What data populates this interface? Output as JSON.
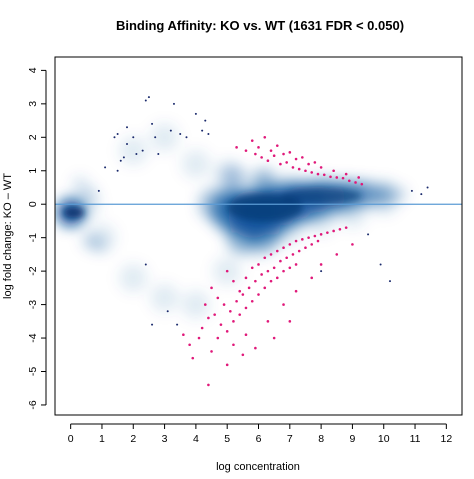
{
  "chart_data": {
    "type": "scatter",
    "title": "Binding Affinity: KO vs. WT (1631 FDR < 0.050)",
    "xlabel": "log concentration",
    "ylabel": "log fold change: KO – WT",
    "xlim": [
      -0.5,
      12.5
    ],
    "ylim": [
      -6.3,
      4.4
    ],
    "x_ticks": [
      "0",
      "1",
      "2",
      "3",
      "4",
      "5",
      "6",
      "7",
      "8",
      "9",
      "10",
      "11",
      "12"
    ],
    "y_ticks": [
      "4",
      "3",
      "2",
      "1",
      "0",
      "-1",
      "-2",
      "-3",
      "-4",
      "-5",
      "-6"
    ],
    "reference_line": {
      "y": 0,
      "color": "#5b9bd5"
    },
    "colors": {
      "density": "#08519c",
      "significant": "#e0197a",
      "outlier": "#1a2a6c"
    },
    "series": [
      {
        "marker": "density-smoothed",
        "color": "#08519c",
        "description_points": [
          [
            0.0,
            -0.2
          ],
          [
            0.5,
            0.0
          ],
          [
            1.0,
            -1.0
          ],
          [
            2.0,
            -2.2
          ],
          [
            3.0,
            -2.8
          ],
          [
            4.0,
            -3.0
          ],
          [
            5.0,
            -2.0
          ],
          [
            6.0,
            -1.2
          ],
          [
            7.0,
            -0.8
          ],
          [
            8.0,
            -0.5
          ],
          [
            9.0,
            -0.3
          ],
          [
            10.0,
            0.1
          ],
          [
            2.0,
            1.6
          ],
          [
            3.0,
            2.0
          ],
          [
            4.0,
            1.2
          ],
          [
            5.0,
            0.9
          ],
          [
            6.0,
            0.6
          ],
          [
            7.0,
            0.5
          ],
          [
            8.0,
            0.4
          ],
          [
            9.0,
            0.3
          ],
          [
            10.0,
            0.3
          ]
        ]
      },
      {
        "marker": "significant",
        "color": "#e0197a",
        "points": [
          [
            5.3,
            1.7
          ],
          [
            5.6,
            1.6
          ],
          [
            5.9,
            1.5
          ],
          [
            6.1,
            1.4
          ],
          [
            6.3,
            1.3
          ],
          [
            6.5,
            1.45
          ],
          [
            6.7,
            1.2
          ],
          [
            6.9,
            1.25
          ],
          [
            7.1,
            1.1
          ],
          [
            7.3,
            1.05
          ],
          [
            7.5,
            1.0
          ],
          [
            7.7,
            0.95
          ],
          [
            7.9,
            0.9
          ],
          [
            8.1,
            0.88
          ],
          [
            8.3,
            0.82
          ],
          [
            8.5,
            0.8
          ],
          [
            8.7,
            0.78
          ],
          [
            8.9,
            0.7
          ],
          [
            9.1,
            0.65
          ],
          [
            9.3,
            0.6
          ],
          [
            6.0,
            1.7
          ],
          [
            6.4,
            1.6
          ],
          [
            6.8,
            1.5
          ],
          [
            7.2,
            1.35
          ],
          [
            7.6,
            1.2
          ],
          [
            8.0,
            1.1
          ],
          [
            8.4,
            1.0
          ],
          [
            8.8,
            0.9
          ],
          [
            9.2,
            0.8
          ],
          [
            5.8,
            1.9
          ],
          [
            6.2,
            2.0
          ],
          [
            6.6,
            1.75
          ],
          [
            7.0,
            1.55
          ],
          [
            7.4,
            1.4
          ],
          [
            7.8,
            1.25
          ],
          [
            5.0,
            -2.0
          ],
          [
            5.2,
            -2.3
          ],
          [
            5.4,
            -2.6
          ],
          [
            5.6,
            -2.2
          ],
          [
            5.8,
            -1.9
          ],
          [
            6.0,
            -1.8
          ],
          [
            6.2,
            -1.6
          ],
          [
            6.4,
            -1.5
          ],
          [
            6.6,
            -1.4
          ],
          [
            6.8,
            -1.3
          ],
          [
            7.0,
            -1.2
          ],
          [
            7.2,
            -1.1
          ],
          [
            7.4,
            -1.05
          ],
          [
            7.6,
            -1.0
          ],
          [
            7.8,
            -0.95
          ],
          [
            8.0,
            -0.9
          ],
          [
            8.2,
            -0.85
          ],
          [
            8.4,
            -0.8
          ],
          [
            8.6,
            -0.75
          ],
          [
            8.8,
            -0.7
          ],
          [
            4.5,
            -2.5
          ],
          [
            4.7,
            -2.8
          ],
          [
            4.9,
            -3.0
          ],
          [
            5.1,
            -3.2
          ],
          [
            5.3,
            -2.9
          ],
          [
            5.5,
            -2.7
          ],
          [
            5.7,
            -2.5
          ],
          [
            5.9,
            -2.3
          ],
          [
            6.1,
            -2.1
          ],
          [
            6.3,
            -2.0
          ],
          [
            6.5,
            -1.9
          ],
          [
            6.7,
            -1.7
          ],
          [
            6.9,
            -1.6
          ],
          [
            7.1,
            -1.5
          ],
          [
            7.3,
            -1.4
          ],
          [
            7.5,
            -1.3
          ],
          [
            7.7,
            -1.2
          ],
          [
            7.9,
            -1.1
          ],
          [
            4.3,
            -3.0
          ],
          [
            4.6,
            -3.3
          ],
          [
            4.8,
            -3.6
          ],
          [
            5.0,
            -3.8
          ],
          [
            5.2,
            -3.5
          ],
          [
            5.4,
            -3.3
          ],
          [
            5.6,
            -3.1
          ],
          [
            5.8,
            -2.9
          ],
          [
            6.0,
            -2.7
          ],
          [
            6.2,
            -2.5
          ],
          [
            6.4,
            -2.3
          ],
          [
            6.6,
            -2.2
          ],
          [
            6.8,
            -2.0
          ],
          [
            7.0,
            -1.9
          ],
          [
            7.2,
            -1.8
          ],
          [
            3.6,
            -3.9
          ],
          [
            3.8,
            -4.2
          ],
          [
            3.9,
            -4.6
          ],
          [
            4.1,
            -4.0
          ],
          [
            4.2,
            -3.7
          ],
          [
            4.4,
            -3.4
          ],
          [
            4.5,
            -4.4
          ],
          [
            4.7,
            -4.0
          ],
          [
            5.2,
            -4.2
          ],
          [
            5.6,
            -3.9
          ],
          [
            6.3,
            -3.5
          ],
          [
            6.8,
            -3.0
          ],
          [
            7.2,
            -2.6
          ],
          [
            7.7,
            -2.2
          ],
          [
            8.0,
            -1.8
          ],
          [
            8.5,
            -1.5
          ],
          [
            9.0,
            -1.2
          ],
          [
            4.4,
            -5.4
          ],
          [
            5.0,
            -4.8
          ],
          [
            5.5,
            -4.5
          ],
          [
            5.9,
            -4.3
          ],
          [
            6.5,
            -4.0
          ],
          [
            7.0,
            -3.5
          ]
        ]
      },
      {
        "marker": "non-significant outlier",
        "color": "#1a2a6c",
        "points": [
          [
            0.9,
            0.4
          ],
          [
            1.4,
            2.0
          ],
          [
            1.5,
            2.1
          ],
          [
            1.6,
            1.3
          ],
          [
            1.7,
            1.4
          ],
          [
            1.8,
            2.3
          ],
          [
            1.8,
            1.8
          ],
          [
            2.0,
            2.0
          ],
          [
            2.1,
            1.5
          ],
          [
            2.3,
            1.6
          ],
          [
            2.4,
            3.1
          ],
          [
            2.5,
            3.2
          ],
          [
            2.6,
            2.4
          ],
          [
            2.7,
            2.0
          ],
          [
            2.8,
            1.5
          ],
          [
            3.2,
            2.2
          ],
          [
            3.3,
            3.0
          ],
          [
            3.5,
            2.1
          ],
          [
            3.7,
            2.0
          ],
          [
            4.0,
            2.7
          ],
          [
            4.2,
            2.2
          ],
          [
            4.3,
            2.5
          ],
          [
            4.4,
            2.1
          ],
          [
            1.1,
            1.1
          ],
          [
            1.5,
            1.0
          ],
          [
            2.4,
            -1.8
          ],
          [
            3.1,
            -3.2
          ],
          [
            3.4,
            -3.6
          ],
          [
            2.6,
            -3.6
          ],
          [
            9.9,
            -1.8
          ],
          [
            10.2,
            -2.3
          ],
          [
            10.9,
            0.4
          ],
          [
            11.2,
            0.3
          ],
          [
            11.4,
            0.5
          ],
          [
            8.0,
            -2.0
          ],
          [
            9.5,
            -0.9
          ]
        ]
      }
    ]
  }
}
